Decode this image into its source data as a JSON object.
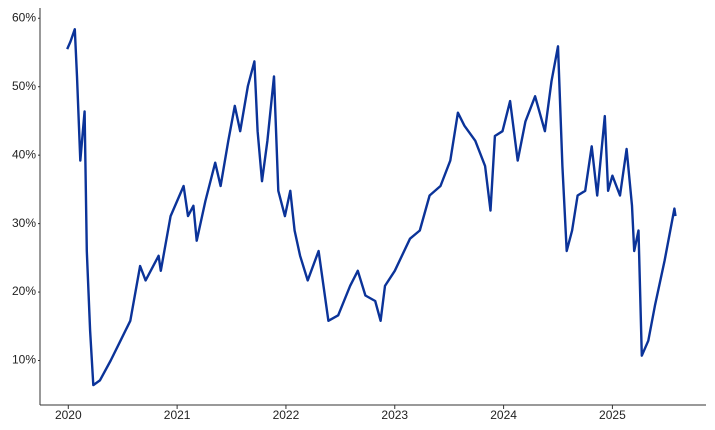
{
  "chart_data": {
    "type": "line",
    "x": [
      2019.99,
      2020.02,
      2020.06,
      2020.08,
      2020.11,
      2020.15,
      2020.17,
      2020.2,
      2020.23,
      2020.29,
      2020.39,
      2020.48,
      2020.57,
      2020.66,
      2020.71,
      2020.83,
      2020.85,
      2020.94,
      2021.06,
      2021.1,
      2021.15,
      2021.18,
      2021.26,
      2021.35,
      2021.4,
      2021.47,
      2021.53,
      2021.58,
      2021.65,
      2021.71,
      2021.74,
      2021.78,
      2021.83,
      2021.89,
      2021.93,
      2021.99,
      2022.04,
      2022.08,
      2022.13,
      2022.2,
      2022.3,
      2022.39,
      2022.48,
      2022.59,
      2022.66,
      2022.73,
      2022.82,
      2022.87,
      2022.91,
      2023.0,
      2023.14,
      2023.23,
      2023.32,
      2023.42,
      2023.51,
      2023.58,
      2023.64,
      2023.74,
      2023.83,
      2023.88,
      2023.92,
      2023.99,
      2024.06,
      2024.13,
      2024.2,
      2024.29,
      2024.38,
      2024.44,
      2024.5,
      2024.54,
      2024.58,
      2024.63,
      2024.68,
      2024.75,
      2024.81,
      2024.86,
      2024.93,
      2024.96,
      2025.0,
      2025.07,
      2025.13,
      2025.18,
      2025.2,
      2025.24,
      2025.27,
      2025.33,
      2025.39,
      2025.48,
      2025.57,
      2025.58
    ],
    "series": [
      {
        "color": "#0b3399",
        "values": [
          55.5,
          56.6,
          58.4,
          51.5,
          39.2,
          46.4,
          26,
          14.4,
          6.4,
          7.1,
          10,
          12.9,
          15.8,
          23.8,
          21.7,
          25.3,
          23.1,
          31.1,
          35.5,
          31.1,
          32.6,
          27.5,
          33.3,
          38.9,
          35.5,
          42.1,
          47.2,
          43.5,
          50.1,
          53.7,
          43.5,
          36.2,
          42.1,
          51.5,
          34.8,
          31.1,
          34.8,
          29,
          25.3,
          21.7,
          26,
          15.8,
          16.6,
          20.9,
          23.1,
          19.5,
          18.7,
          15.8,
          20.9,
          23.1,
          27.8,
          29,
          34.1,
          35.5,
          39.2,
          46.2,
          44.3,
          42.1,
          38.4,
          31.9,
          42.8,
          43.5,
          47.9,
          39.2,
          44.9,
          48.6,
          43.5,
          50.8,
          55.9,
          38.4,
          26,
          29,
          34.1,
          34.8,
          41.3,
          34.1,
          45.7,
          34.8,
          37,
          34.1,
          40.9,
          32.6,
          26,
          29,
          10.7,
          12.9,
          18,
          24.6,
          32.2,
          31.1
        ]
      }
    ],
    "xlim": [
      2019.74,
      2025.86
    ],
    "xticks": [
      2020,
      2021,
      2022,
      2023,
      2024,
      2025
    ],
    "ylim": [
      3.5,
      61.5
    ],
    "yticks": [
      {
        "value": 10,
        "label": "10%"
      },
      {
        "value": 20,
        "label": "20%"
      },
      {
        "value": 30,
        "label": "30%"
      },
      {
        "value": 40,
        "label": "40%"
      },
      {
        "value": 50,
        "label": "50%"
      },
      {
        "value": 60,
        "label": "60%"
      }
    ],
    "grid": false
  }
}
